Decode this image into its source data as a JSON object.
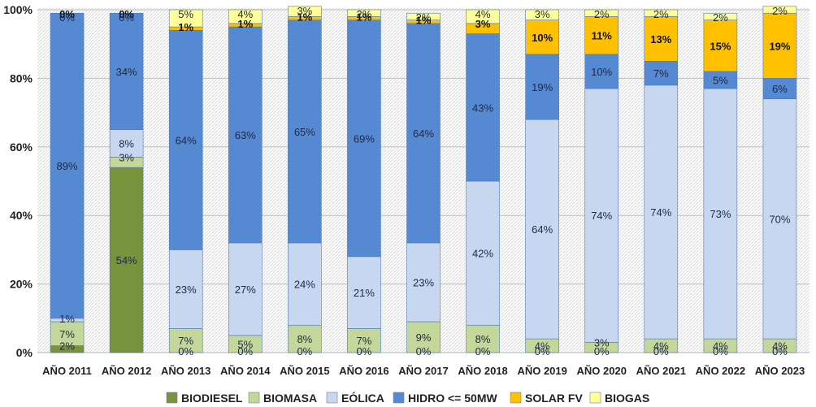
{
  "chart_data": {
    "type": "bar",
    "stacked": true,
    "percent": true,
    "categories": [
      "AÑO 2011",
      "AÑO 2012",
      "AÑO 2013",
      "AÑO 2014",
      "AÑO 2015",
      "AÑO 2016",
      "AÑO 2017",
      "AÑO 2018",
      "AÑO 2019",
      "AÑO 2020",
      "AÑO 2021",
      "AÑO 2022",
      "AÑO 2023"
    ],
    "y_ticks": [
      "0%",
      "20%",
      "40%",
      "60%",
      "80%",
      "100%"
    ],
    "ylim": [
      0,
      100
    ],
    "legend_position": "bottom",
    "series": [
      {
        "name": "BIODIESEL",
        "color": "#77933c",
        "values": [
          2,
          54,
          0,
          0,
          0,
          0,
          0,
          0,
          0,
          0,
          0,
          0,
          0
        ],
        "labels": [
          "2%",
          "54%",
          "",
          "",
          "",
          "",
          "",
          "",
          "",
          "",
          "",
          "",
          ""
        ]
      },
      {
        "name": "BIOMASA",
        "color": "#c4d79b",
        "values": [
          7,
          3,
          7,
          5,
          8,
          7,
          9,
          8,
          4,
          3,
          4,
          4,
          4
        ],
        "labels": [
          "7%",
          "3%",
          "7%",
          "5%",
          "8%",
          "7%",
          "9%",
          "8%",
          "4%",
          "3%",
          "4%",
          "4%",
          "4%"
        ]
      },
      {
        "name": "EÓLICA",
        "color": "#c6d7ef",
        "values": [
          1,
          8,
          23,
          27,
          24,
          21,
          23,
          42,
          64,
          74,
          74,
          73,
          70
        ],
        "labels": [
          "1%",
          "8%",
          "23%",
          "27%",
          "24%",
          "21%",
          "23%",
          "42%",
          "64%",
          "74%",
          "74%",
          "73%",
          "70%"
        ]
      },
      {
        "name": "HIDRO <= 50MW",
        "color": "#5589d2",
        "values": [
          89,
          34,
          64,
          63,
          65,
          69,
          64,
          43,
          19,
          10,
          7,
          5,
          6
        ],
        "labels": [
          "89%",
          "34%",
          "64%",
          "63%",
          "65%",
          "69%",
          "64%",
          "43%",
          "19%",
          "10%",
          "7%",
          "5%",
          "6%"
        ]
      },
      {
        "name": "SOLAR FV",
        "color": "#ffc000",
        "values": [
          0,
          0,
          1,
          1,
          1,
          1,
          1,
          3,
          10,
          11,
          13,
          15,
          19
        ],
        "labels": [
          "0%",
          "0%",
          "1%",
          "1%",
          "1%",
          "1%",
          "1%",
          "3%",
          "10%",
          "11%",
          "13%",
          "15%",
          "19%"
        ]
      },
      {
        "name": "BIOGAS",
        "color": "#ffff99",
        "values": [
          0,
          0,
          5,
          4,
          3,
          2,
          2,
          4,
          3,
          2,
          2,
          2,
          2
        ],
        "labels": [
          "0%",
          "0%",
          "5%",
          "4%",
          "3%",
          "2%",
          "2%",
          "4%",
          "3%",
          "2%",
          "2%",
          "2%",
          "2%"
        ]
      }
    ],
    "zero_labels": [
      "",
      "",
      "0%",
      "0%",
      "0%",
      "0%",
      "0%",
      "0%",
      "0%",
      "0%",
      "0%",
      "0%",
      "0%"
    ]
  }
}
